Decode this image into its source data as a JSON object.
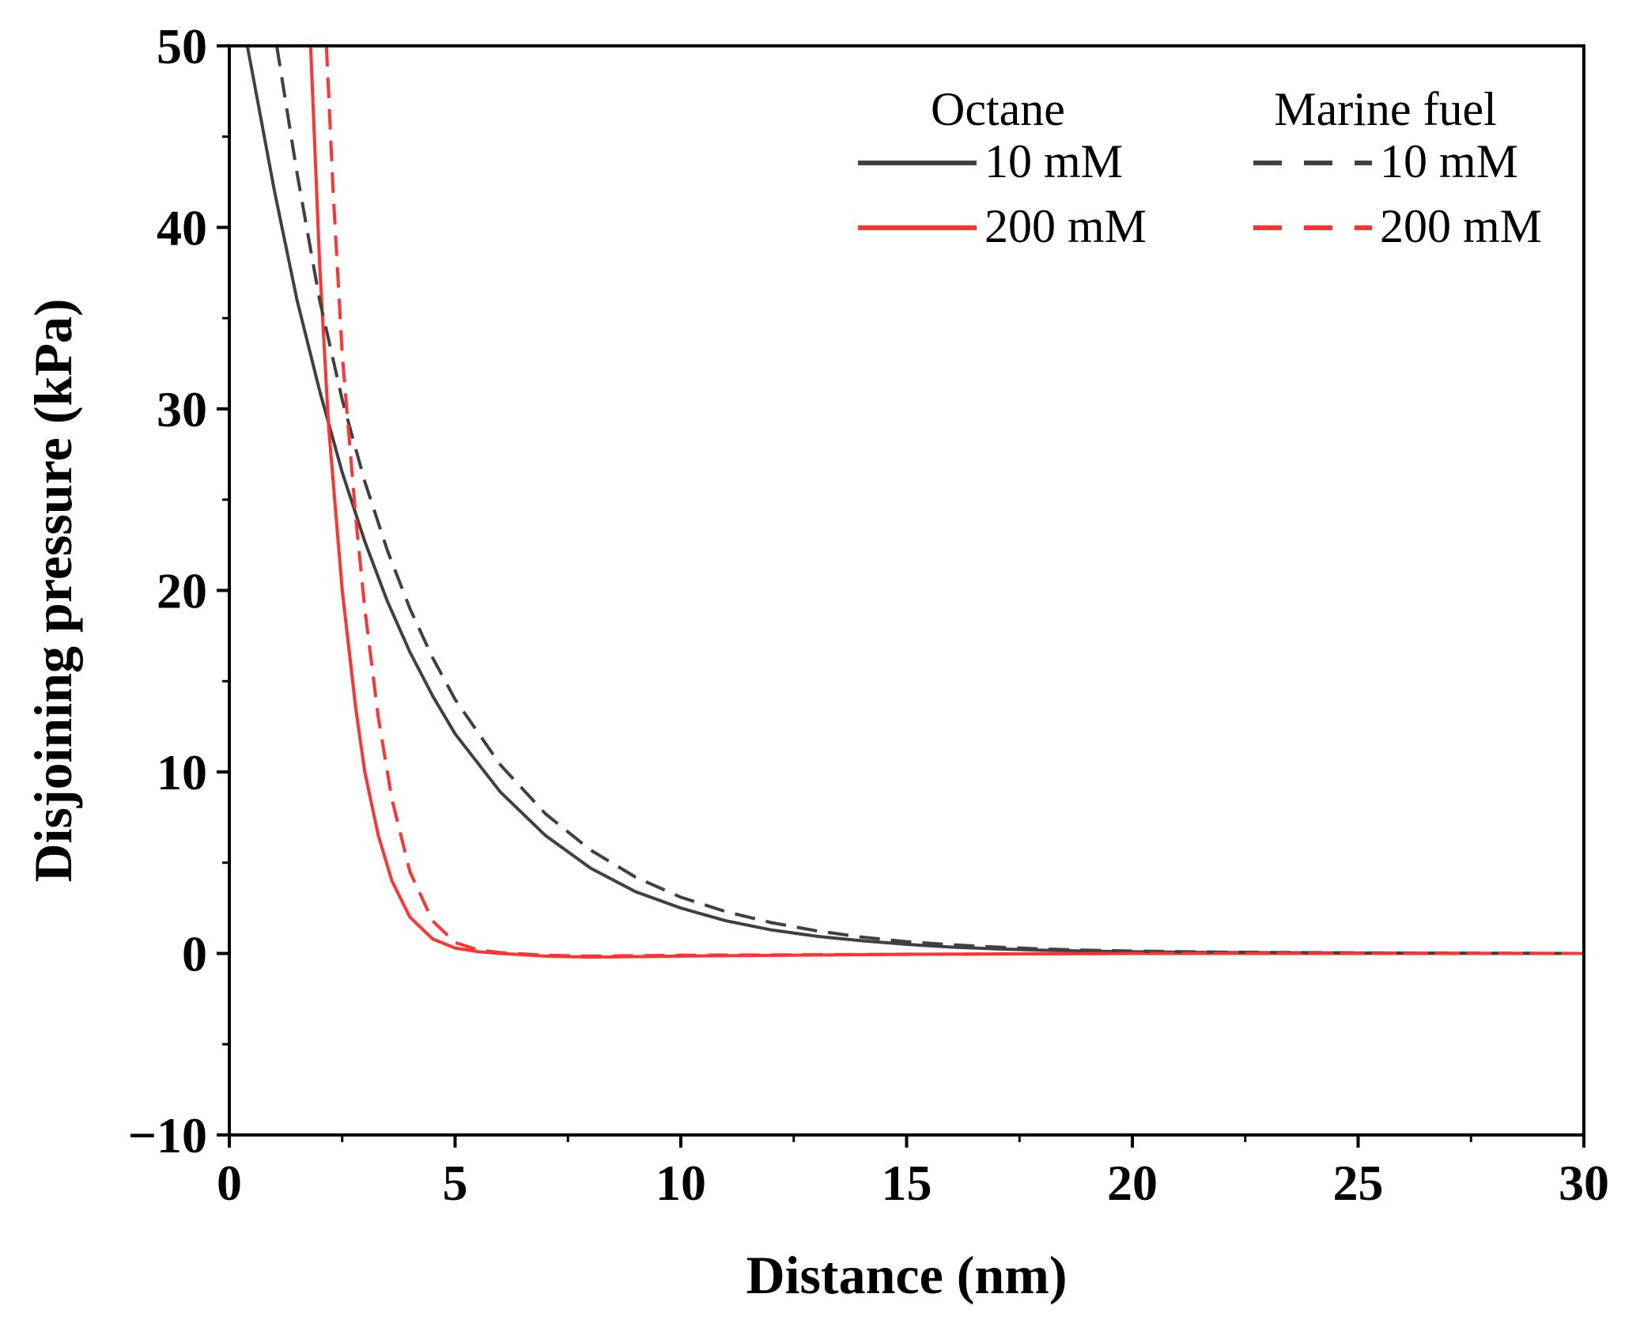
{
  "chart_data": {
    "type": "line",
    "title": "",
    "xlabel": "Distance (nm)",
    "ylabel": "Disjoining pressure (kPa)",
    "xlim": [
      0,
      30
    ],
    "ylim": [
      -10,
      50
    ],
    "x_ticks": [
      0,
      5,
      10,
      15,
      20,
      25,
      30
    ],
    "x_tick_labels": [
      "0",
      "5",
      "10",
      "15",
      "20",
      "25",
      "30"
    ],
    "y_ticks": [
      -10,
      0,
      10,
      20,
      30,
      40,
      50
    ],
    "y_tick_labels": [
      "−10",
      "0",
      "10",
      "20",
      "30",
      "40",
      "50"
    ],
    "grid": false,
    "legend": {
      "position": "top-right",
      "groups": [
        {
          "title": "Octane",
          "entries": [
            "10 mM",
            "200 mM"
          ]
        },
        {
          "title": "Marine fuel",
          "entries": [
            "10 mM",
            "200 mM"
          ]
        }
      ]
    },
    "series": [
      {
        "name": "Octane 10 mM",
        "group": "Octane",
        "label": "10 mM",
        "color": "#404040",
        "dash": "solid",
        "x": [
          0.4,
          1,
          1.5,
          2,
          2.5,
          3,
          3.5,
          4,
          4.5,
          5,
          6,
          7,
          8,
          9,
          10,
          11,
          12,
          13,
          14,
          15,
          16,
          17,
          18,
          19,
          20,
          22,
          25,
          30
        ],
        "y": [
          50,
          42,
          36,
          31,
          26.5,
          22.7,
          19.4,
          16.6,
          14.2,
          12.1,
          8.9,
          6.5,
          4.7,
          3.4,
          2.5,
          1.8,
          1.3,
          0.95,
          0.7,
          0.5,
          0.35,
          0.25,
          0.18,
          0.13,
          0.09,
          0.05,
          0.02,
          0
        ]
      },
      {
        "name": "Octane 200 mM",
        "group": "Octane",
        "label": "200 mM",
        "color": "#ff3333",
        "dash": "solid",
        "x": [
          1.8,
          2,
          2.2,
          2.5,
          2.8,
          3,
          3.3,
          3.6,
          4,
          4.5,
          5,
          5.5,
          6,
          7,
          8,
          10,
          15,
          20,
          30
        ],
        "y": [
          50,
          38,
          29,
          20,
          13.5,
          10,
          6.5,
          4,
          2,
          0.8,
          0.3,
          0.1,
          0,
          -0.15,
          -0.2,
          -0.15,
          -0.05,
          0,
          0
        ]
      },
      {
        "name": "Marine fuel 10 mM",
        "group": "Marine fuel",
        "label": "10 mM",
        "color": "#404040",
        "dash": "dashed",
        "x": [
          1.05,
          1.5,
          2,
          2.5,
          3,
          3.5,
          4,
          4.5,
          5,
          6,
          7,
          8,
          9,
          10,
          11,
          12,
          13,
          14,
          15,
          16,
          17,
          18,
          19,
          20,
          22,
          25,
          30
        ],
        "y": [
          50,
          43,
          36,
          30.5,
          26,
          22.2,
          19,
          16.3,
          14,
          10.4,
          7.7,
          5.7,
          4.2,
          3.1,
          2.3,
          1.7,
          1.25,
          0.9,
          0.65,
          0.48,
          0.35,
          0.25,
          0.18,
          0.13,
          0.07,
          0.03,
          0
        ]
      },
      {
        "name": "Marine fuel 200 mM",
        "group": "Marine fuel",
        "label": "200 mM",
        "color": "#ff3333",
        "dash": "dashed",
        "x": [
          2.15,
          2.3,
          2.5,
          2.8,
          3,
          3.3,
          3.6,
          4,
          4.5,
          5,
          5.5,
          6,
          7,
          8,
          10,
          15,
          20,
          30
        ],
        "y": [
          50,
          42,
          33,
          24,
          19,
          13,
          8.5,
          4.5,
          1.8,
          0.6,
          0.2,
          0.05,
          -0.1,
          -0.15,
          -0.1,
          -0.05,
          0,
          0
        ]
      }
    ]
  }
}
